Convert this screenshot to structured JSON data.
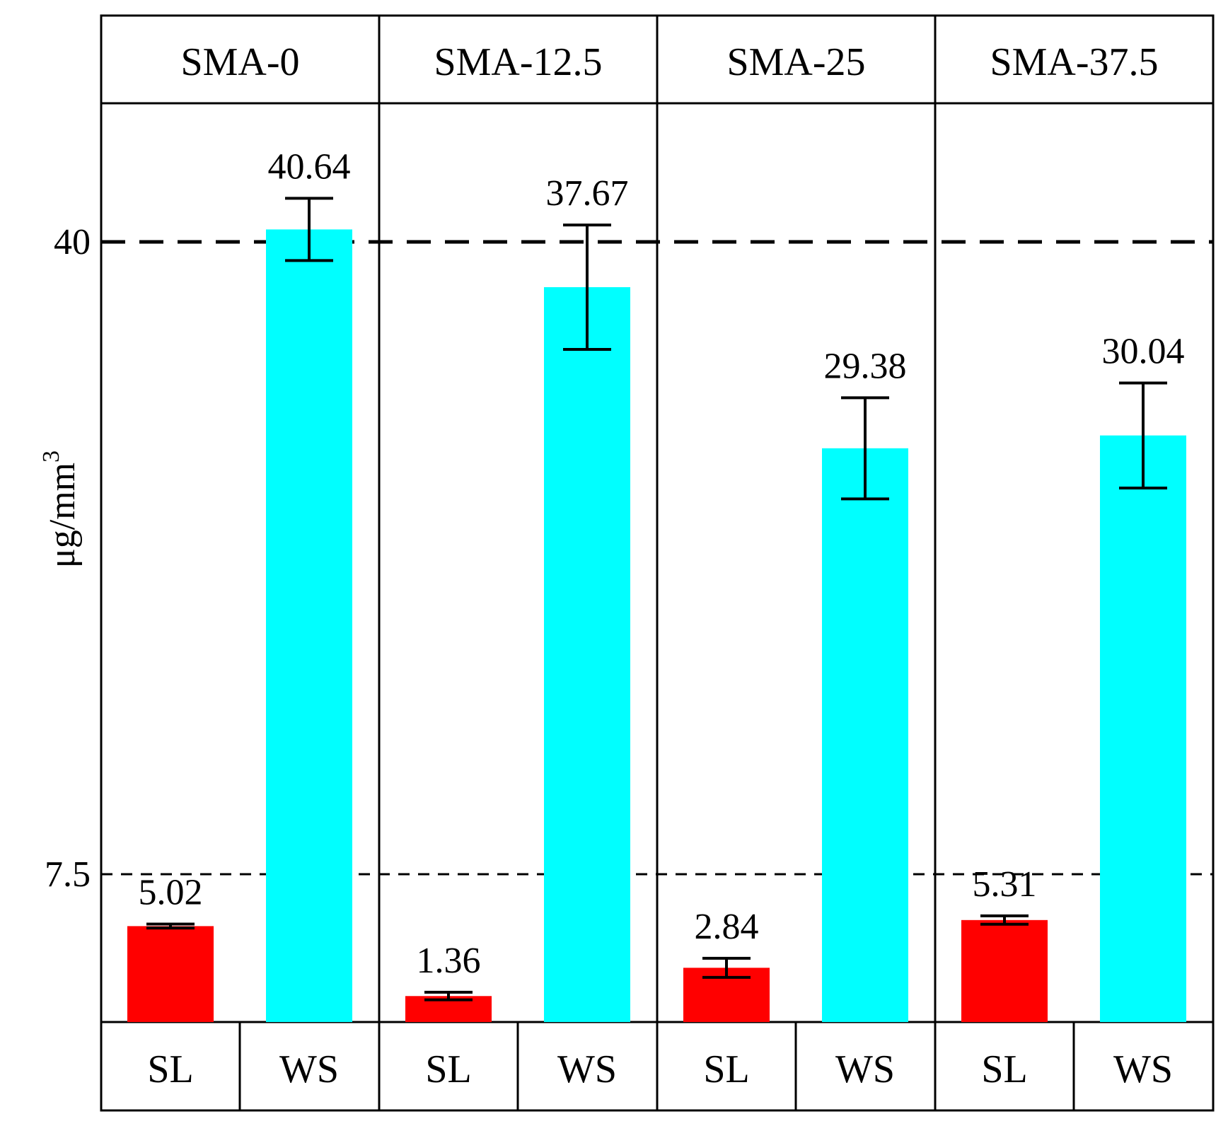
{
  "chart_data": {
    "type": "bar",
    "ylabel": "μg/mm",
    "ylabel_superscript": "3",
    "y_ticks": [
      {
        "label": "40",
        "value": 40
      },
      {
        "label": "7.5",
        "value": 7.5
      }
    ],
    "reference_lines": [
      {
        "value": 40,
        "style": "dashed-thick"
      },
      {
        "value": 7.5,
        "style": "dashed-thin"
      }
    ],
    "axis_note": "y-axis is broken/compressed; the pixel scale is approximate",
    "panels": [
      {
        "name": "SMA-0",
        "bars": [
          {
            "category": "SL",
            "value": 5.02,
            "error": 0.1,
            "label": "5.02",
            "color": "#ff0000"
          },
          {
            "category": "WS",
            "value": 40.64,
            "error": 1.6,
            "label": "40.64",
            "color": "#00ffff"
          }
        ]
      },
      {
        "name": "SMA-12.5",
        "bars": [
          {
            "category": "SL",
            "value": 1.36,
            "error": 0.2,
            "label": "1.36",
            "color": "#ff0000"
          },
          {
            "category": "WS",
            "value": 37.67,
            "error": 3.2,
            "label": "37.67",
            "color": "#00ffff"
          }
        ]
      },
      {
        "name": "SMA-25",
        "bars": [
          {
            "category": "SL",
            "value": 2.84,
            "error": 0.5,
            "label": "2.84",
            "color": "#ff0000"
          },
          {
            "category": "WS",
            "value": 29.38,
            "error": 2.6,
            "label": "29.38",
            "color": "#00ffff"
          }
        ]
      },
      {
        "name": "SMA-37.5",
        "bars": [
          {
            "category": "SL",
            "value": 5.31,
            "error": 0.2,
            "label": "5.31",
            "color": "#ff0000"
          },
          {
            "category": "WS",
            "value": 30.04,
            "error": 2.7,
            "label": "30.04",
            "color": "#00ffff"
          }
        ]
      }
    ]
  }
}
